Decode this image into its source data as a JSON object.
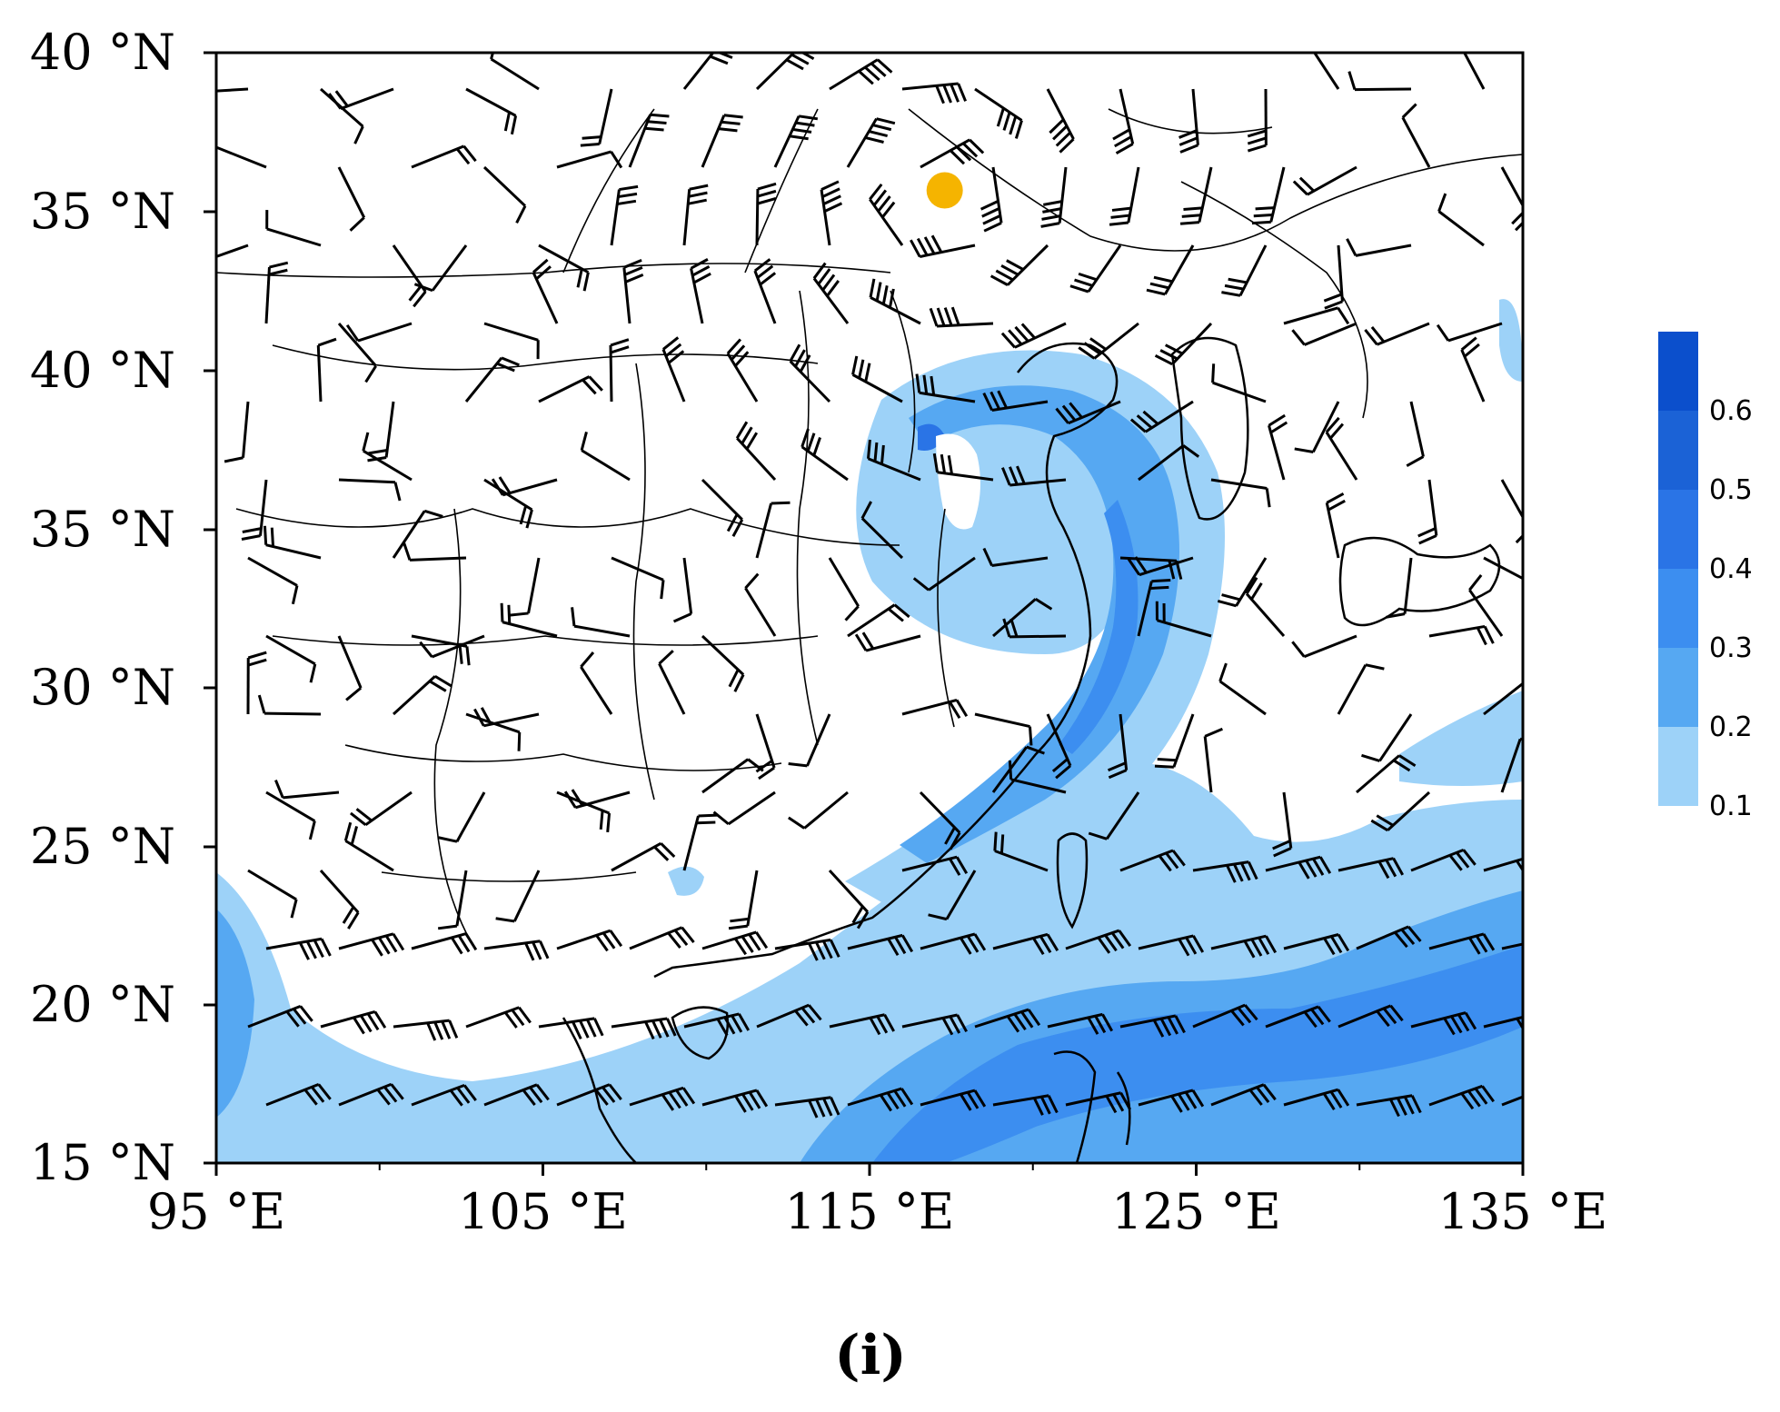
{
  "map": {
    "lon_range": [
      95,
      135
    ],
    "lat_range": [
      15,
      40
    ],
    "x_ticks": [
      {
        "lon": 95,
        "label": "95 °E"
      },
      {
        "lon": 105,
        "label": "105 °E"
      },
      {
        "lon": 115,
        "label": "115 °E"
      },
      {
        "lon": 125,
        "label": "125 °E"
      },
      {
        "lon": 135,
        "label": "135 °E"
      }
    ],
    "x_minor_ticks": [
      100,
      110,
      120,
      130
    ],
    "y_ticks": [
      {
        "lat": 15,
        "label": "15 °N"
      },
      {
        "lat": 20,
        "label": "20 °N"
      },
      {
        "lat": 25,
        "label": "25 °N"
      },
      {
        "lat": 30,
        "label": "30 °N"
      },
      {
        "lat": 35,
        "label": "35 °N"
      },
      {
        "lat": 40,
        "label": "40 °N"
      },
      {
        "lat": 35,
        "label": "35 °N",
        "row": "top"
      },
      {
        "lat": 40,
        "label": "40 °N",
        "row": "top"
      }
    ],
    "marker": {
      "lon": 117.3,
      "lat": 36.9,
      "color": "#f5b400"
    },
    "shading_colors": [
      "#9dd2f8",
      "#56a8f2",
      "#3c8ef0",
      "#2a74e6",
      "#1b62d6",
      "#0b4fcc"
    ],
    "coast_color": "#000000"
  },
  "colorbar": {
    "levels": [
      "0.1",
      "0.2",
      "0.3",
      "0.4",
      "0.5",
      "0.6"
    ],
    "colors": [
      "#9dd2f8",
      "#56a8f2",
      "#3c8ef0",
      "#2a74e6",
      "#1b62d6",
      "#0b4fcc"
    ]
  },
  "panel_label": "(i)"
}
